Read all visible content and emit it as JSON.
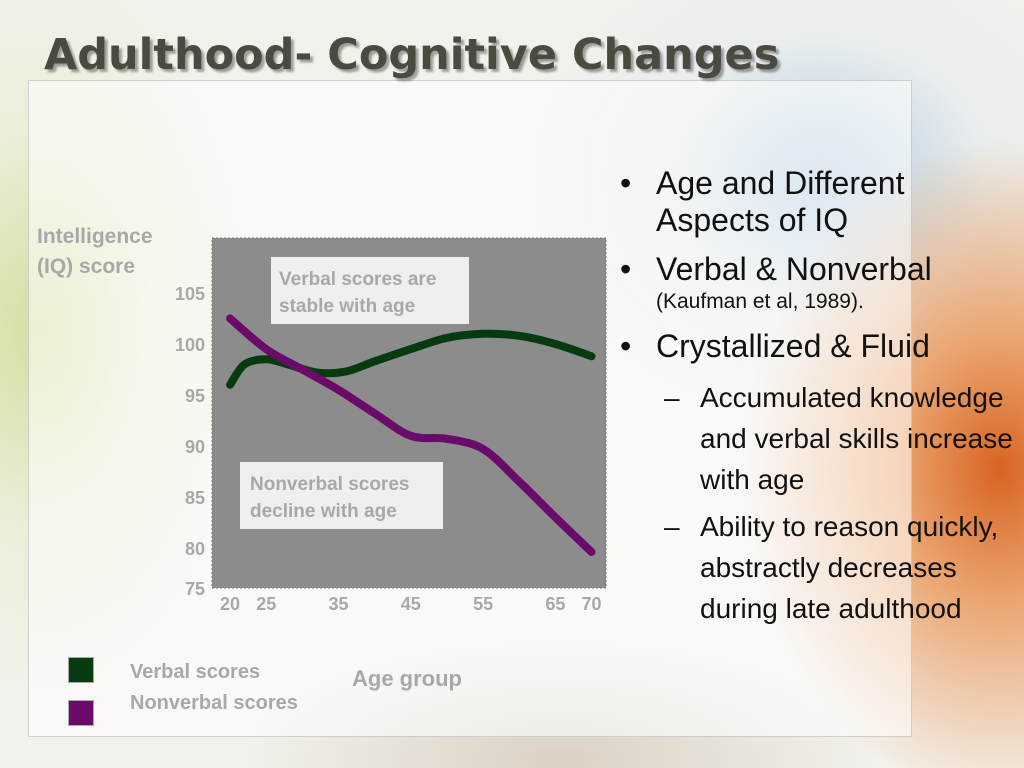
{
  "slide": {
    "title": "Adulthood- Cognitive Changes",
    "bullets": [
      {
        "text": "Age and Different Aspects of IQ"
      },
      {
        "text": "Verbal & Nonverbal",
        "cite": "(Kaufman et al, 1989)."
      },
      {
        "text": "Crystallized & Fluid"
      }
    ],
    "sub_bullets": [
      "Accumulated knowledge and verbal skills increase with age",
      "Ability to reason quickly, abstractly decreases during late adulthood"
    ]
  },
  "colors": {
    "plot_background": "#8c8c8c",
    "verbal": "#063b10",
    "nonverbal": "#6a0a6a",
    "axis_text": "#a8a8a8"
  },
  "chart_data": {
    "type": "line",
    "ylabel": "Intelligence (IQ) score",
    "xlabel": "Age group",
    "x_ticks": [
      20,
      25,
      35,
      45,
      55,
      65,
      70
    ],
    "y_ticks": [
      75,
      80,
      85,
      90,
      95,
      100,
      105
    ],
    "xlim": [
      17.5,
      72
    ],
    "grid": false,
    "legend_position": "bottom-left",
    "series": [
      {
        "name": "Verbal scores",
        "x": [
          20,
          22,
          25,
          28,
          32,
          36,
          40,
          45,
          50,
          55,
          60,
          65,
          70
        ],
        "y": [
          96,
          98,
          98.5,
          98,
          97.2,
          97.3,
          98.3,
          99.5,
          100.6,
          101,
          100.8,
          100,
          98.8
        ]
      },
      {
        "name": "Nonverbal scores",
        "x": [
          20,
          25,
          30,
          35,
          40,
          45,
          50,
          55,
          60,
          65,
          70
        ],
        "y": [
          102.5,
          99.5,
          97.5,
          95.5,
          93.2,
          91,
          90.7,
          89.7,
          86.5,
          83,
          79.5
        ]
      }
    ],
    "annotations": [
      {
        "text": "Verbal scores are stable with age"
      },
      {
        "text": "Nonverbal scores decline with age"
      }
    ]
  }
}
